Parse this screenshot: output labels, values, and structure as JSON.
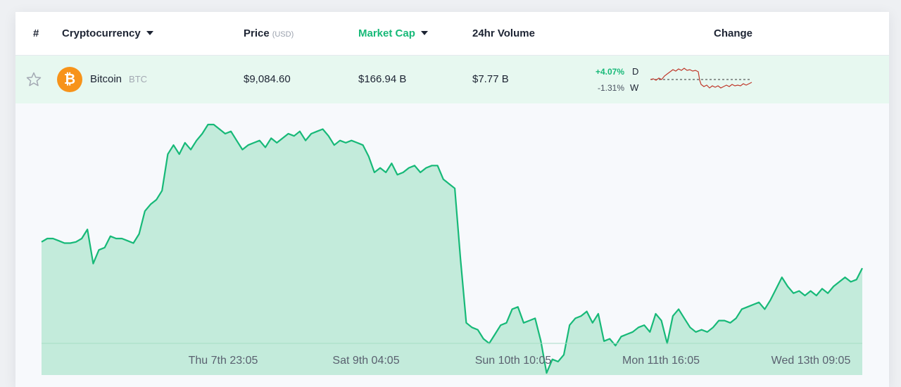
{
  "table": {
    "headers": {
      "rank": "#",
      "name": "Cryptocurrency",
      "price": "Price",
      "price_unit": "(USD)",
      "market_cap": "Market Cap",
      "volume": "24hr Volume",
      "change": "Change"
    },
    "row": {
      "star_icon": "star-outline-icon",
      "coin_icon": "bitcoin-logo-icon",
      "coin_symbol_glyph": "₿",
      "name": "Bitcoin",
      "symbol": "BTC",
      "price": "$9,084.60",
      "market_cap": "$166.94 B",
      "volume": "$7.77 B",
      "change_day": "+4.07%",
      "change_day_label": "D",
      "change_week": "-1.31%",
      "change_week_label": "W"
    }
  },
  "colors": {
    "accent": "#17b978",
    "area_fill": "#c3ebdb",
    "sparkline": "#c0392b",
    "bitcoin": "#f7931a"
  },
  "chart_data": {
    "type": "area",
    "x_tick_labels": [
      "Thu 7th 23:05",
      "Sat 9th 04:05",
      "Sun 10th 10:05",
      "Mon 11th 16:05",
      "Wed 13th 09:05"
    ],
    "series": [
      {
        "values": [
          8855,
          8870,
          8870,
          8860,
          8850,
          8850,
          8855,
          8870,
          8910,
          8760,
          8820,
          8830,
          8880,
          8870,
          8870,
          8860,
          8850,
          8890,
          8990,
          9020,
          9040,
          9080,
          9240,
          9280,
          9240,
          9290,
          9260,
          9300,
          9330,
          9370,
          9370,
          9350,
          9330,
          9340,
          9300,
          9260,
          9280,
          9290,
          9300,
          9270,
          9310,
          9290,
          9310,
          9330,
          9320,
          9340,
          9300,
          9330,
          9340,
          9350,
          9320,
          9280,
          9300,
          9290,
          9300,
          9290,
          9280,
          9230,
          9160,
          9180,
          9160,
          9200,
          9150,
          9160,
          9180,
          9190,
          9160,
          9180,
          9190,
          9190,
          9130,
          9110,
          9090,
          8780,
          8500,
          8480,
          8470,
          8430,
          8410,
          8450,
          8490,
          8500,
          8560,
          8570,
          8500,
          8510,
          8520,
          8420,
          8280,
          8340,
          8330,
          8360,
          8490,
          8520,
          8530,
          8550,
          8500,
          8540,
          8420,
          8430,
          8400,
          8440,
          8450,
          8460,
          8480,
          8490,
          8460,
          8540,
          8510,
          8410,
          8530,
          8560,
          8520,
          8480,
          8460,
          8470,
          8460,
          8480,
          8510,
          8510,
          8500,
          8520,
          8560,
          8570,
          8580,
          8590,
          8560,
          8600,
          8650,
          8700,
          8660,
          8630,
          8640,
          8620,
          8640,
          8620,
          8650,
          8630,
          8660,
          8680,
          8700,
          8680,
          8690,
          8740
        ]
      }
    ]
  }
}
